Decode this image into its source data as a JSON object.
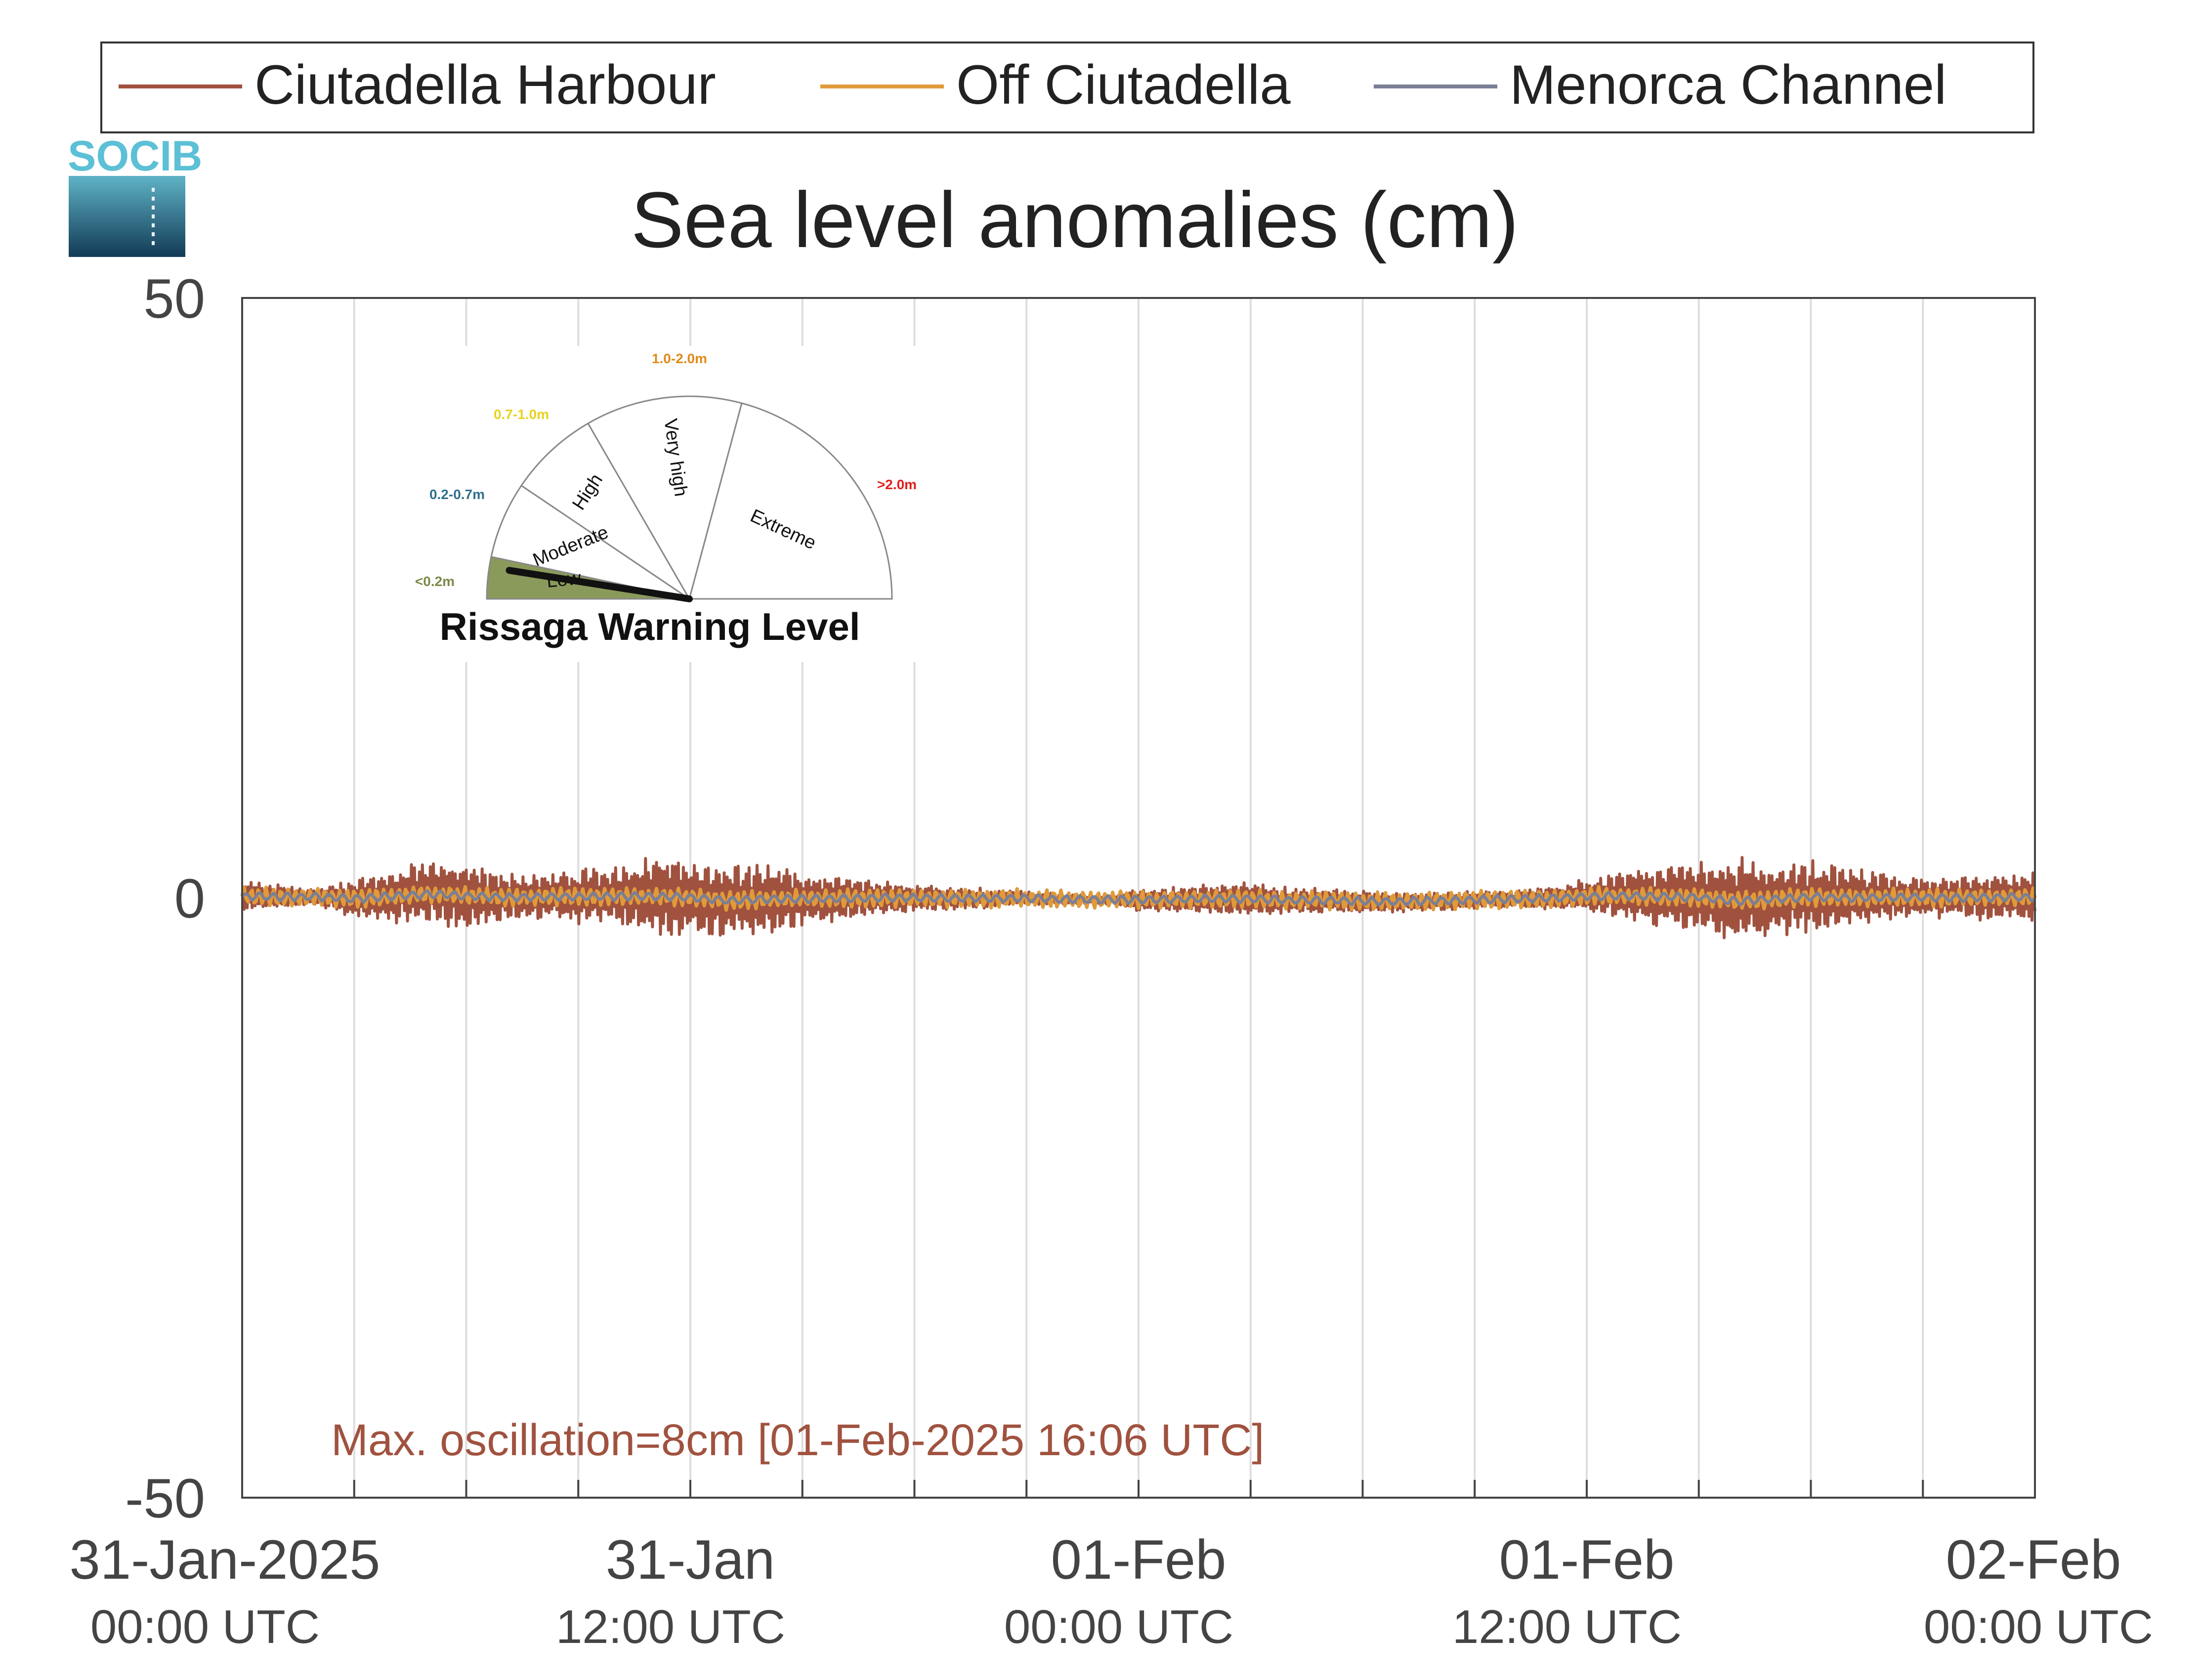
{
  "chart_data": {
    "type": "line",
    "title": "Sea level anomalies (cm)",
    "ylim": [
      -50,
      50
    ],
    "yticks": [
      "50",
      "0",
      "-50"
    ],
    "xlim": [
      "2025-01-31T00:00",
      "2025-02-02T00:00"
    ],
    "xticks": [
      {
        "t": "2025-01-31T00:00",
        "date": "31-Jan-2025",
        "time": "00:00 UTC"
      },
      {
        "t": "2025-01-31T12:00",
        "date": "31-Jan",
        "time": "12:00 UTC"
      },
      {
        "t": "2025-02-01T00:00",
        "date": "01-Feb",
        "time": "00:00 UTC"
      },
      {
        "t": "2025-02-01T12:00",
        "date": "01-Feb",
        "time": "12:00 UTC"
      },
      {
        "t": "2025-02-02T00:00",
        "date": "02-Feb",
        "time": "00:00 UTC"
      }
    ],
    "grid_times": [
      "2025-01-31T03:00",
      "2025-01-31T06:00",
      "2025-01-31T09:00",
      "2025-01-31T12:00",
      "2025-01-31T15:00",
      "2025-01-31T18:00",
      "2025-01-31T21:00",
      "2025-02-01T00:00",
      "2025-02-01T03:00",
      "2025-02-01T06:00",
      "2025-02-01T09:00",
      "2025-02-01T12:00",
      "2025-02-01T15:00",
      "2025-02-01T18:00",
      "2025-02-01T21:00",
      "2025-02-02T00:00"
    ],
    "legend_position": "top",
    "series": [
      {
        "name": "Ciutadella Harbour",
        "color": "#a0523f",
        "envelope_times": [
          "2025-01-31T00:00",
          "2025-01-31T01:00",
          "2025-01-31T02:00",
          "2025-01-31T03:00",
          "2025-01-31T04:00",
          "2025-01-31T05:00",
          "2025-01-31T06:00",
          "2025-01-31T07:00",
          "2025-01-31T08:00",
          "2025-01-31T09:00",
          "2025-01-31T10:00",
          "2025-01-31T11:00",
          "2025-01-31T12:00",
          "2025-01-31T13:00",
          "2025-01-31T14:00",
          "2025-01-31T15:00",
          "2025-01-31T16:00",
          "2025-01-31T17:00",
          "2025-01-31T18:00",
          "2025-01-31T19:00",
          "2025-01-31T20:00",
          "2025-01-31T21:00",
          "2025-01-31T22:00",
          "2025-01-31T23:00",
          "2025-02-01T00:00",
          "2025-02-01T01:00",
          "2025-02-01T02:00",
          "2025-02-01T03:00",
          "2025-02-01T04:00",
          "2025-02-01T05:00",
          "2025-02-01T06:00",
          "2025-02-01T07:00",
          "2025-02-01T08:00",
          "2025-02-01T09:00",
          "2025-02-01T10:00",
          "2025-02-01T11:00",
          "2025-02-01T12:00",
          "2025-02-01T13:00",
          "2025-02-01T14:00",
          "2025-02-01T15:00",
          "2025-02-01T16:00",
          "2025-02-01T17:00",
          "2025-02-01T18:00",
          "2025-02-01T19:00",
          "2025-02-01T20:00",
          "2025-02-01T21:00",
          "2025-02-01T22:00",
          "2025-02-01T23:00",
          "2025-02-02T00:00"
        ],
        "envelope_max": [
          1.5,
          1.2,
          0.8,
          1.6,
          2.5,
          3.2,
          3.0,
          2.2,
          2.0,
          2.4,
          2.9,
          3.8,
          3.3,
          3.0,
          3.0,
          2.2,
          1.8,
          1.5,
          1.2,
          1.0,
          0.8,
          0.6,
          0.3,
          0.2,
          0.7,
          0.9,
          1.2,
          1.4,
          0.9,
          0.8,
          0.7,
          0.5,
          0.5,
          0.6,
          0.6,
          0.9,
          1.6,
          2.3,
          2.8,
          3.1,
          3.6,
          3.1,
          3.2,
          2.6,
          2.2,
          1.7,
          1.9,
          2.2,
          2.4
        ],
        "envelope_min": [
          -1.2,
          -1.0,
          -0.6,
          -1.8,
          -2.2,
          -2.4,
          -2.6,
          -2.1,
          -1.8,
          -2.2,
          -2.6,
          -3.5,
          -3.2,
          -3.6,
          -3.3,
          -2.4,
          -2.0,
          -1.5,
          -1.2,
          -1.1,
          -0.9,
          -0.7,
          -0.6,
          -0.5,
          -1.1,
          -1.2,
          -1.4,
          -1.6,
          -1.4,
          -1.3,
          -1.4,
          -1.3,
          -1.1,
          -1.0,
          -0.9,
          -1.0,
          -1.3,
          -1.9,
          -2.6,
          -3.0,
          -4.3,
          -3.4,
          -3.0,
          -2.6,
          -2.1,
          -1.6,
          -1.9,
          -2.1,
          -2.3
        ]
      },
      {
        "name": "Off Ciutadella",
        "color": "#e09a3a",
        "envelope_amplitude": 0.8
      },
      {
        "name": "Menorca Channel",
        "color": "#7a7f96",
        "envelope_amplitude": 0.35
      }
    ],
    "annotation": "Max. oscillation=8cm [01-Feb-2025 16:06 UTC]",
    "annotation_color": "#a0523f"
  },
  "logo": {
    "text": "SOCIB"
  },
  "inset": {
    "title": "Rissaga Warning Level",
    "current_level": "Low",
    "needle_fraction": 0.05,
    "sectors": [
      {
        "name": "Low",
        "range": "<0.2m",
        "color": "#8a9a5b",
        "label_color": "#7a8a4a",
        "active": true
      },
      {
        "name": "Moderate",
        "range": "0.2-0.7m",
        "color": "#ffffff",
        "label_color": "#2e6f8e",
        "active": false
      },
      {
        "name": "High",
        "range": "0.7-1.0m",
        "color": "#ffffff",
        "label_color": "#e8d21f",
        "active": false
      },
      {
        "name": "Very high",
        "range": "1.0-2.0m",
        "color": "#ffffff",
        "label_color": "#e08a1a",
        "active": false
      },
      {
        "name": "Extreme",
        "range": ">2.0m",
        "color": "#ffffff",
        "label_color": "#e0201a",
        "active": false
      }
    ]
  }
}
